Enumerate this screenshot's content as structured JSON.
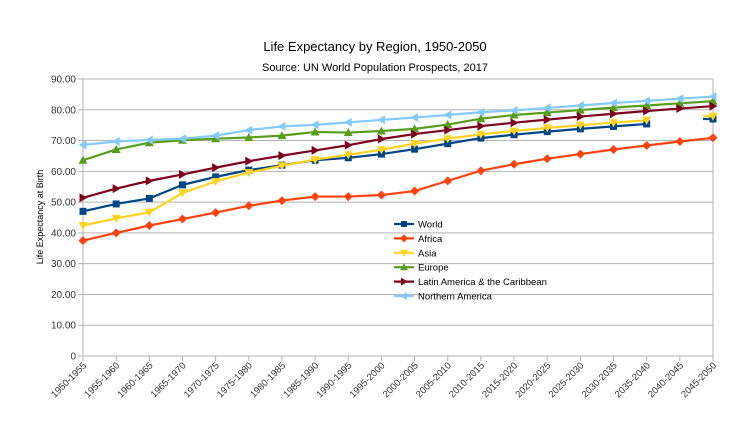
{
  "chart_data": {
    "type": "line",
    "title": "Life Expectancy by Region, 1950-2050",
    "subtitle": "Source: UN World Population Prospects, 2017",
    "xlabel": "",
    "ylabel": "Life Expectancy at Birth",
    "ylim": [
      0,
      90
    ],
    "yticks": [
      "0",
      "10.00",
      "20.00",
      "30.00",
      "40.00",
      "50.00",
      "60.00",
      "70.00",
      "80.00",
      "90.00"
    ],
    "ytick_values": [
      0,
      10,
      20,
      30,
      40,
      50,
      60,
      70,
      80,
      90
    ],
    "grid": true,
    "legend_position": "center",
    "categories": [
      "1950-1955",
      "1955-1960",
      "1960-1965",
      "1965-1970",
      "1970-1975",
      "1975-1980",
      "1980-1985",
      "1985-1990",
      "1990-1995",
      "1995-2000",
      "2000-2005",
      "2005-2010",
      "2010-2015",
      "2015-2020",
      "2020-2025",
      "2025-2030",
      "2030-2035",
      "2035-2040",
      "2040-2045",
      "2045-2050"
    ],
    "series": [
      {
        "name": "World",
        "color": "#004586",
        "marker": "square",
        "values": [
          47.0,
          49.4,
          51.2,
          55.6,
          58.2,
          60.4,
          62.0,
          63.6,
          64.4,
          65.6,
          67.2,
          69.0,
          70.8,
          71.9,
          72.9,
          73.8,
          74.6,
          75.4,
          null,
          77.0
        ]
      },
      {
        "name": "Africa",
        "color": "#ff420e",
        "marker": "diamond",
        "values": [
          37.5,
          40.0,
          42.4,
          44.5,
          46.6,
          48.8,
          50.5,
          51.8,
          51.8,
          52.3,
          53.6,
          56.9,
          60.2,
          62.3,
          64.1,
          65.6,
          67.1,
          68.4,
          69.7,
          70.9
        ]
      },
      {
        "name": "Asia",
        "color": "#ffd320",
        "marker": "triangle-down",
        "values": [
          42.4,
          44.7,
          46.7,
          53.0,
          56.7,
          59.6,
          61.8,
          63.8,
          65.4,
          67.0,
          69.0,
          70.6,
          72.0,
          73.1,
          74.1,
          75.0,
          75.8,
          76.6,
          null,
          77.9
        ]
      },
      {
        "name": "Europe",
        "color": "#579d1c",
        "marker": "triangle-up",
        "values": [
          63.6,
          67.1,
          69.3,
          70.1,
          70.6,
          71.0,
          71.6,
          72.8,
          72.6,
          73.1,
          73.8,
          75.2,
          77.1,
          78.3,
          79.1,
          79.9,
          80.7,
          81.4,
          82.1,
          82.8
        ]
      },
      {
        "name": "Latin America & the Caribbean",
        "color": "#7e0021",
        "marker": "triangle-right",
        "values": [
          51.4,
          54.4,
          56.9,
          59.0,
          61.2,
          63.3,
          65.1,
          66.8,
          68.5,
          70.5,
          72.1,
          73.4,
          74.7,
          75.8,
          76.8,
          77.8,
          78.7,
          79.6,
          80.4,
          81.2
        ]
      },
      {
        "name": "Northern America",
        "color": "#83caff",
        "marker": "triangle-left",
        "values": [
          68.6,
          69.7,
          70.2,
          70.6,
          71.6,
          73.4,
          74.6,
          75.1,
          75.9,
          76.7,
          77.5,
          78.3,
          79.2,
          79.8,
          80.6,
          81.4,
          82.2,
          82.9,
          83.6,
          84.3
        ]
      }
    ]
  }
}
